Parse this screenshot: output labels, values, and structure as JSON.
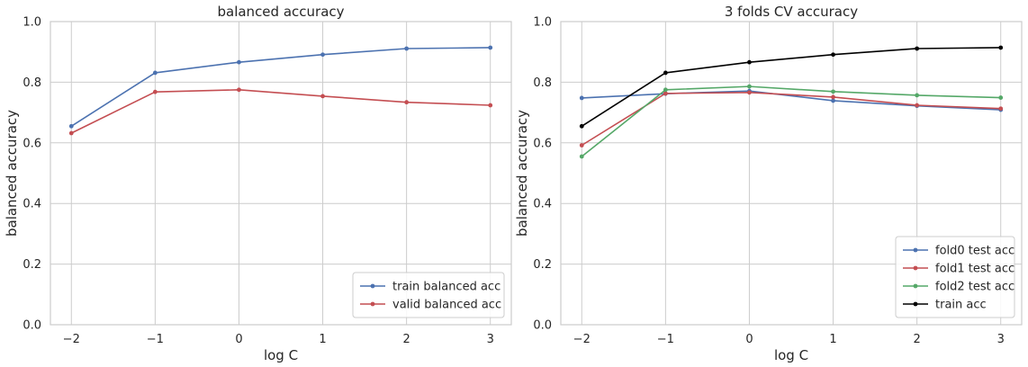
{
  "colors": {
    "background": "#ffffff",
    "grid": "#cccccc",
    "spine": "#cccccc",
    "text": "#262626",
    "blue": "#4c72b0",
    "red": "#c44e52",
    "green": "#55a868",
    "black": "#000000"
  },
  "chart_data": [
    {
      "type": "line",
      "title": "balanced accuracy",
      "xlabel": "log C",
      "ylabel": "balanced accuracy",
      "x": [
        -2,
        -1,
        0,
        1,
        2,
        3
      ],
      "xticks": [
        "−2",
        "−1",
        "0",
        "1",
        "2",
        "3"
      ],
      "yticks": [
        "0.0",
        "0.2",
        "0.4",
        "0.6",
        "0.8",
        "1.0"
      ],
      "xlim": [
        -2.25,
        3.25
      ],
      "ylim": [
        0,
        1
      ],
      "grid": true,
      "legend_position": "lower right",
      "series": [
        {
          "name": "train balanced acc",
          "color": "#4c72b0",
          "values": [
            0.655,
            0.831,
            0.866,
            0.891,
            0.911,
            0.914
          ]
        },
        {
          "name": "valid balanced acc",
          "color": "#c44e52",
          "values": [
            0.632,
            0.768,
            0.775,
            0.754,
            0.734,
            0.724
          ]
        }
      ]
    },
    {
      "type": "line",
      "title": "3 folds CV accuracy",
      "xlabel": "log C",
      "ylabel": "balanced accuracy",
      "x": [
        -2,
        -1,
        0,
        1,
        2,
        3
      ],
      "xticks": [
        "−2",
        "−1",
        "0",
        "1",
        "2",
        "3"
      ],
      "yticks": [
        "0.0",
        "0.2",
        "0.4",
        "0.6",
        "0.8",
        "1.0"
      ],
      "xlim": [
        -2.25,
        3.25
      ],
      "ylim": [
        0,
        1
      ],
      "grid": true,
      "legend_position": "lower right",
      "series": [
        {
          "name": "fold0 test acc",
          "color": "#4c72b0",
          "values": [
            0.748,
            0.762,
            0.771,
            0.739,
            0.722,
            0.709
          ]
        },
        {
          "name": "fold1 test acc",
          "color": "#c44e52",
          "values": [
            0.592,
            0.763,
            0.766,
            0.751,
            0.724,
            0.713
          ]
        },
        {
          "name": "fold2 test acc",
          "color": "#55a868",
          "values": [
            0.555,
            0.775,
            0.786,
            0.769,
            0.757,
            0.749
          ]
        },
        {
          "name": "train acc",
          "color": "#000000",
          "values": [
            0.655,
            0.831,
            0.866,
            0.891,
            0.911,
            0.914
          ]
        }
      ]
    }
  ]
}
